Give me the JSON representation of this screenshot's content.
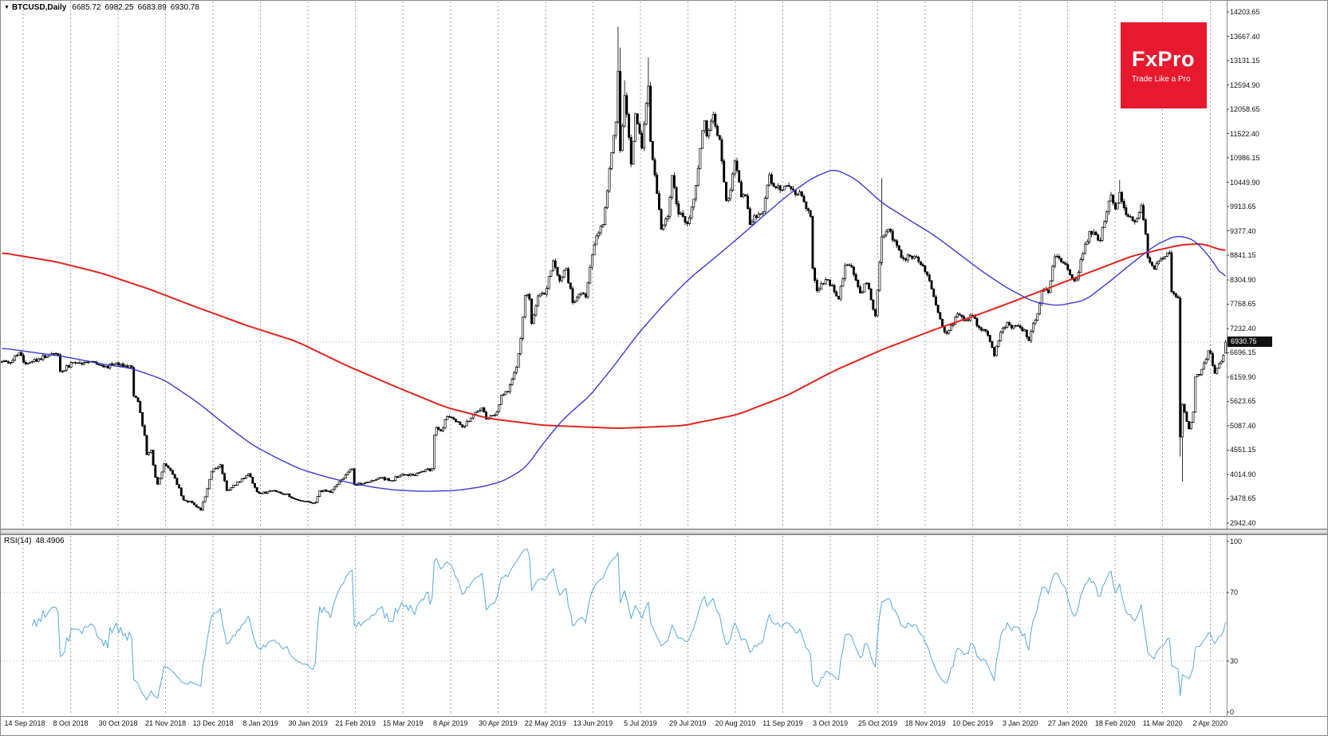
{
  "header": {
    "marker": "▼",
    "symbol_period": "BTCUSD,Daily",
    "open": "6685.72",
    "high": "6982.25",
    "low": "6683.89",
    "close": "6930.78"
  },
  "logo": {
    "title": "FxPro",
    "tagline": "Trade Like a Pro",
    "bg_color": "#e8192e",
    "text_color": "#ffffff"
  },
  "price_scale": {
    "tick_labels": [
      "14203.65",
      "13667.40",
      "13131.15",
      "12594.90",
      "12058.65",
      "11522.40",
      "10986.15",
      "10449.90",
      "9913.65",
      "9377.40",
      "8841.15",
      "8304.90",
      "7768.65",
      "7232.40",
      "6696.15",
      "6159.90",
      "5623.65",
      "5087.40",
      "4551.15",
      "4014.90",
      "3478.65",
      "2942.40"
    ],
    "current_price": "6930.75"
  },
  "time_scale": {
    "labels": [
      "14 Sep 2018",
      "8 Oct 2018",
      "30 Oct 2018",
      "21 Nov 2018",
      "13 Dec 2018",
      "8 Jan 2019",
      "30 Jan 2019",
      "21 Feb 2019",
      "15 Mar 2019",
      "8 Apr 2019",
      "30 Apr 2019",
      "22 May 2019",
      "13 Jun 2019",
      "5 Jul 2019",
      "29 Jul 2019",
      "20 Aug 2019",
      "11 Sep 2019",
      "3 Oct 2019",
      "25 Oct 2019",
      "18 Nov 2019",
      "10 Dec 2019",
      "3 Jan 2020",
      "27 Jan 2020",
      "18 Feb 2020",
      "11 Mar 2020",
      "2 Apr 2020"
    ]
  },
  "rsi_pane": {
    "name_label": "RSI(14)",
    "value_label": "48.4906",
    "tick_labels": [
      "100",
      "70",
      "30",
      "0"
    ],
    "tick_values": [
      100,
      70,
      30,
      0
    ]
  },
  "chart_data": {
    "type": "candlestick",
    "symbol": "BTCUSD",
    "timeframe": "Daily",
    "x_start": "14 Sep 2018",
    "x_end": "2 Apr 2020",
    "days": 567,
    "ylim": [
      2942.4,
      14203.65
    ],
    "style": {
      "grid": "#a3a3a3",
      "candle_border": "#000000",
      "candle_up_fill": "#ffffff",
      "candle_down_fill": "#000000",
      "current_price_line": "#b0b0b0",
      "tag_bg": "#111111",
      "tag_text": "#ffffff",
      "axis_line": "#8a8a8a",
      "level_line": "#b0b0b0"
    },
    "price_keypoints": [
      [
        0,
        6500
      ],
      [
        4,
        6480
      ],
      [
        8,
        6700
      ],
      [
        11,
        6450
      ],
      [
        15,
        6550
      ],
      [
        20,
        6590
      ],
      [
        26,
        6650
      ],
      [
        27,
        6280
      ],
      [
        33,
        6480
      ],
      [
        40,
        6490
      ],
      [
        47,
        6380
      ],
      [
        55,
        6450
      ],
      [
        60,
        6370
      ],
      [
        61,
        5740
      ],
      [
        63,
        5620
      ],
      [
        66,
        4870
      ],
      [
        67,
        4450
      ],
      [
        69,
        4550
      ],
      [
        71,
        3950
      ],
      [
        72,
        3800
      ],
      [
        75,
        4250
      ],
      [
        78,
        4100
      ],
      [
        80,
        3930
      ],
      [
        84,
        3450
      ],
      [
        88,
        3390
      ],
      [
        92,
        3230
      ],
      [
        95,
        3700
      ],
      [
        97,
        4080
      ],
      [
        101,
        4230
      ],
      [
        104,
        3660
      ],
      [
        107,
        3780
      ],
      [
        110,
        3850
      ],
      [
        114,
        4030
      ],
      [
        118,
        3630
      ],
      [
        122,
        3600
      ],
      [
        126,
        3660
      ],
      [
        131,
        3580
      ],
      [
        136,
        3460
      ],
      [
        141,
        3420
      ],
      [
        145,
        3400
      ],
      [
        147,
        3660
      ],
      [
        152,
        3620
      ],
      [
        157,
        3900
      ],
      [
        162,
        4140
      ],
      [
        163,
        3790
      ],
      [
        168,
        3830
      ],
      [
        175,
        3940
      ],
      [
        180,
        3880
      ],
      [
        185,
        4020
      ],
      [
        190,
        4000
      ],
      [
        195,
        4080
      ],
      [
        199,
        4140
      ],
      [
        200,
        4880
      ],
      [
        201,
        5050
      ],
      [
        203,
        4970
      ],
      [
        206,
        5290
      ],
      [
        210,
        5180
      ],
      [
        213,
        5060
      ],
      [
        217,
        5260
      ],
      [
        222,
        5480
      ],
      [
        224,
        5230
      ],
      [
        229,
        5400
      ],
      [
        231,
        5760
      ],
      [
        234,
        5830
      ],
      [
        238,
        6380
      ],
      [
        240,
        7010
      ],
      [
        242,
        7960
      ],
      [
        244,
        7880
      ],
      [
        245,
        7340
      ],
      [
        248,
        7950
      ],
      [
        251,
        7980
      ],
      [
        255,
        8720
      ],
      [
        258,
        8280
      ],
      [
        261,
        8550
      ],
      [
        264,
        7800
      ],
      [
        267,
        7980
      ],
      [
        270,
        7920
      ],
      [
        273,
        8850
      ],
      [
        275,
        9270
      ],
      [
        278,
        9520
      ],
      [
        281,
        10750
      ],
      [
        284,
        11780
      ],
      [
        285,
        12900
      ],
      [
        286,
        11150
      ],
      [
        288,
        12360
      ],
      [
        291,
        10850
      ],
      [
        293,
        11960
      ],
      [
        296,
        11200
      ],
      [
        299,
        12570
      ],
      [
        300,
        11350
      ],
      [
        303,
        10200
      ],
      [
        305,
        9420
      ],
      [
        308,
        9700
      ],
      [
        310,
        10600
      ],
      [
        313,
        9750
      ],
      [
        317,
        9540
      ],
      [
        320,
        10080
      ],
      [
        323,
        11200
      ],
      [
        325,
        11810
      ],
      [
        326,
        11470
      ],
      [
        329,
        11950
      ],
      [
        332,
        11390
      ],
      [
        335,
        10050
      ],
      [
        337,
        10280
      ],
      [
        339,
        10920
      ],
      [
        342,
        10130
      ],
      [
        344,
        10150
      ],
      [
        346,
        9520
      ],
      [
        348,
        9720
      ],
      [
        352,
        9800
      ],
      [
        355,
        10620
      ],
      [
        357,
        10360
      ],
      [
        360,
        10280
      ],
      [
        364,
        10360
      ],
      [
        367,
        10180
      ],
      [
        369,
        10240
      ],
      [
        372,
        9870
      ],
      [
        374,
        9700
      ],
      [
        375,
        8560
      ],
      [
        377,
        8060
      ],
      [
        379,
        8220
      ],
      [
        381,
        8310
      ],
      [
        384,
        8180
      ],
      [
        387,
        7880
      ],
      [
        390,
        8620
      ],
      [
        393,
        8580
      ],
      [
        397,
        8010
      ],
      [
        400,
        8230
      ],
      [
        404,
        7510
      ],
      [
        406,
        8680
      ],
      [
        407,
        9250
      ],
      [
        410,
        9420
      ],
      [
        413,
        9160
      ],
      [
        416,
        8790
      ],
      [
        420,
        8820
      ],
      [
        424,
        8700
      ],
      [
        427,
        8480
      ],
      [
        430,
        8100
      ],
      [
        433,
        7580
      ],
      [
        435,
        7280
      ],
      [
        437,
        7120
      ],
      [
        440,
        7320
      ],
      [
        442,
        7550
      ],
      [
        445,
        7400
      ],
      [
        449,
        7520
      ],
      [
        452,
        7250
      ],
      [
        456,
        7080
      ],
      [
        459,
        6630
      ],
      [
        462,
        7150
      ],
      [
        465,
        7360
      ],
      [
        467,
        7240
      ],
      [
        470,
        7290
      ],
      [
        473,
        7200
      ],
      [
        475,
        6960
      ],
      [
        477,
        7340
      ],
      [
        479,
        7550
      ],
      [
        481,
        8050
      ],
      [
        484,
        8020
      ],
      [
        487,
        8810
      ],
      [
        490,
        8700
      ],
      [
        492,
        8640
      ],
      [
        495,
        8330
      ],
      [
        497,
        8320
      ],
      [
        500,
        8880
      ],
      [
        503,
        9370
      ],
      [
        506,
        9290
      ],
      [
        508,
        9170
      ],
      [
        511,
        9800
      ],
      [
        513,
        10170
      ],
      [
        515,
        9860
      ],
      [
        517,
        10230
      ],
      [
        519,
        9890
      ],
      [
        521,
        9690
      ],
      [
        523,
        9610
      ],
      [
        525,
        9660
      ],
      [
        527,
        9940
      ],
      [
        529,
        9310
      ],
      [
        530,
        8790
      ],
      [
        533,
        8540
      ],
      [
        536,
        8760
      ],
      [
        538,
        8820
      ],
      [
        540,
        8900
      ],
      [
        541,
        8040
      ],
      [
        543,
        7930
      ],
      [
        544,
        7900
      ],
      [
        545,
        4840
      ],
      [
        546,
        5560
      ],
      [
        548,
        5180
      ],
      [
        549,
        5020
      ],
      [
        551,
        5390
      ],
      [
        552,
        6170
      ],
      [
        554,
        6210
      ],
      [
        556,
        6470
      ],
      [
        558,
        6740
      ],
      [
        559,
        6680
      ],
      [
        561,
        6240
      ],
      [
        563,
        6460
      ],
      [
        565,
        6640
      ],
      [
        566,
        6930.78
      ]
    ],
    "wick_overrides": [
      [
        92,
        "l",
        3215
      ],
      [
        285,
        "h",
        13880
      ],
      [
        286,
        "h",
        13420
      ],
      [
        288,
        "h",
        12700
      ],
      [
        299,
        "h",
        13200
      ],
      [
        407,
        "h",
        10540
      ],
      [
        517,
        "h",
        10500
      ],
      [
        545,
        "l",
        4410
      ],
      [
        546,
        "l",
        3858
      ]
    ],
    "last_candle": {
      "o": 6685.72,
      "h": 6982.25,
      "l": 6683.89,
      "c": 6930.78
    },
    "series": [
      {
        "name": "ma-slow-red",
        "color": "#e3241d",
        "width": 2,
        "keypoints": [
          [
            0,
            8900
          ],
          [
            25,
            8700
          ],
          [
            46,
            8450
          ],
          [
            68,
            8100
          ],
          [
            90,
            7700
          ],
          [
            113,
            7300
          ],
          [
            136,
            6950
          ],
          [
            160,
            6400
          ],
          [
            182,
            5950
          ],
          [
            205,
            5500
          ],
          [
            225,
            5250
          ],
          [
            250,
            5100
          ],
          [
            285,
            5030
          ],
          [
            315,
            5090
          ],
          [
            340,
            5330
          ],
          [
            363,
            5750
          ],
          [
            385,
            6300
          ],
          [
            407,
            6760
          ],
          [
            431,
            7200
          ],
          [
            453,
            7560
          ],
          [
            477,
            7990
          ],
          [
            501,
            8430
          ],
          [
            523,
            8830
          ],
          [
            545,
            9070
          ],
          [
            555,
            9100
          ],
          [
            566,
            8930
          ]
        ]
      },
      {
        "name": "ma-fast-blue",
        "color": "#3a3ad6",
        "width": 1.4,
        "keypoints": [
          [
            0,
            6800
          ],
          [
            30,
            6600
          ],
          [
            46,
            6450
          ],
          [
            60,
            6350
          ],
          [
            75,
            6100
          ],
          [
            90,
            5620
          ],
          [
            105,
            5050
          ],
          [
            116,
            4660
          ],
          [
            127,
            4380
          ],
          [
            138,
            4130
          ],
          [
            150,
            3960
          ],
          [
            160,
            3840
          ],
          [
            172,
            3730
          ],
          [
            182,
            3670
          ],
          [
            195,
            3640
          ],
          [
            210,
            3660
          ],
          [
            222,
            3740
          ],
          [
            232,
            3870
          ],
          [
            242,
            4150
          ],
          [
            252,
            4800
          ],
          [
            260,
            5250
          ],
          [
            272,
            5750
          ],
          [
            283,
            6400
          ],
          [
            294,
            7100
          ],
          [
            306,
            7750
          ],
          [
            318,
            8330
          ],
          [
            330,
            8800
          ],
          [
            340,
            9200
          ],
          [
            352,
            9700
          ],
          [
            363,
            10150
          ],
          [
            375,
            10550
          ],
          [
            385,
            10750
          ],
          [
            395,
            10520
          ],
          [
            407,
            10000
          ],
          [
            419,
            9640
          ],
          [
            431,
            9290
          ],
          [
            442,
            8900
          ],
          [
            453,
            8500
          ],
          [
            465,
            8120
          ],
          [
            477,
            7820
          ],
          [
            488,
            7730
          ],
          [
            501,
            7850
          ],
          [
            512,
            8250
          ],
          [
            523,
            8680
          ],
          [
            533,
            9050
          ],
          [
            543,
            9280
          ],
          [
            551,
            9200
          ],
          [
            558,
            8850
          ],
          [
            566,
            8280
          ]
        ]
      }
    ],
    "indicator": {
      "name": "RSI",
      "period": 14,
      "current": 48.4906,
      "color": "#55a9df",
      "levels": [
        70,
        30
      ],
      "range": [
        0,
        100
      ]
    }
  }
}
